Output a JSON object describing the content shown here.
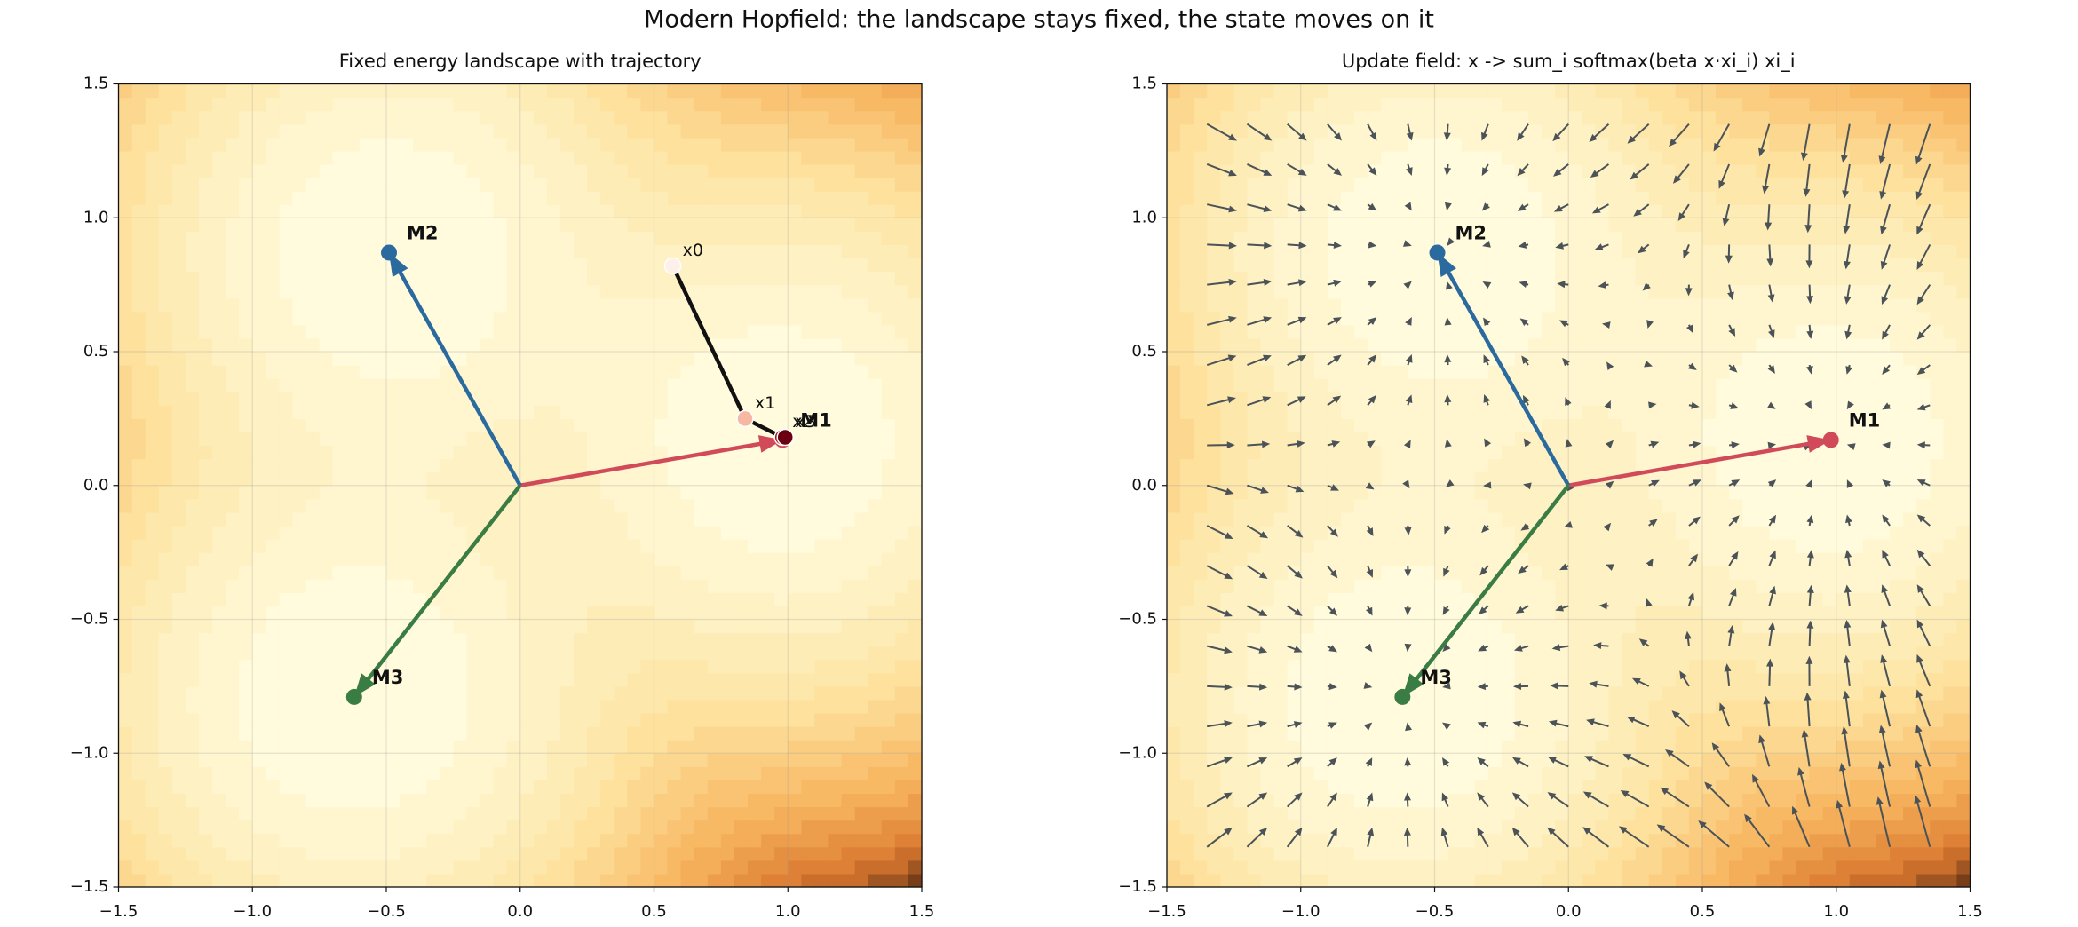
{
  "suptitle": "Modern Hopfield: the landscape stays fixed, the state moves on it",
  "chart_data": [
    {
      "type": "trajectory",
      "title": "Fixed energy landscape with trajectory",
      "xlim": [
        -1.5,
        1.5
      ],
      "ylim": [
        -1.5,
        1.5
      ],
      "xticks": [
        {
          "value": -1.5,
          "label": "−1.5"
        },
        {
          "value": -1.0,
          "label": "−1.0"
        },
        {
          "value": -0.5,
          "label": "−0.5"
        },
        {
          "value": 0,
          "label": "0.0"
        },
        0.5,
        {
          "value": 1.0,
          "label": "1.0"
        },
        1.5
      ],
      "yticks": [
        {
          "value": -1.5,
          "label": "−1.5"
        },
        {
          "value": -1.0,
          "label": "−1.0"
        },
        {
          "value": -0.5,
          "label": "−0.5"
        },
        {
          "value": 0,
          "label": "0.0"
        },
        0.5,
        {
          "value": 1.0,
          "label": "1.0"
        },
        1.5
      ],
      "grid": true,
      "series": [
        {
          "name": "M1",
          "color": "#d04a5a",
          "x": [
            0.98
          ],
          "y": [
            0.17
          ]
        },
        {
          "name": "M2",
          "color": "#2b6a9e",
          "x": [
            -0.49
          ],
          "y": [
            0.87
          ]
        },
        {
          "name": "M3",
          "color": "#3a7d44",
          "x": [
            -0.62
          ],
          "y": [
            -0.79
          ]
        }
      ],
      "trajectory": {
        "labels": [
          "x0",
          "x1",
          "x2",
          "x3"
        ],
        "x": [
          0.57,
          0.84,
          0.98,
          0.99
        ],
        "y": [
          0.82,
          0.25,
          0.18,
          0.18
        ],
        "colors": [
          "#fdf0ea",
          "#f6b8a2",
          "#a3101f",
          "#6b0010"
        ],
        "color": "#111111"
      }
    },
    {
      "type": "quiver",
      "title": "Update field: x -> sum_i softmax(beta x·xi_i) xi_i",
      "xlim": [
        -1.5,
        1.5
      ],
      "ylim": [
        -1.5,
        1.5
      ],
      "xticks": [
        {
          "value": -1.5,
          "label": "−1.5"
        },
        {
          "value": -1.0,
          "label": "−1.0"
        },
        {
          "value": -0.5,
          "label": "−0.5"
        },
        {
          "value": 0,
          "label": "0.0"
        },
        0.5,
        {
          "value": 1.0,
          "label": "1.0"
        },
        1.5
      ],
      "yticks": [
        {
          "value": -1.5,
          "label": "−1.5"
        },
        {
          "value": -1.0,
          "label": "−1.0"
        },
        {
          "value": -0.5,
          "label": "−0.5"
        },
        {
          "value": 0,
          "label": "0.0"
        },
        0.5,
        {
          "value": 1.0,
          "label": "1.0"
        },
        1.5
      ],
      "grid": true,
      "series": [
        {
          "name": "M1",
          "color": "#d04a5a",
          "x": [
            0.98
          ],
          "y": [
            0.17
          ]
        },
        {
          "name": "M2",
          "color": "#2b6a9e",
          "x": [
            -0.49
          ],
          "y": [
            0.87
          ]
        },
        {
          "name": "M3",
          "color": "#3a7d44",
          "x": [
            -0.62
          ],
          "y": [
            -0.79
          ]
        }
      ],
      "quiver": {
        "color": "#4b5358",
        "x": [
          -1.35,
          -1.2,
          -1.05,
          -0.9,
          -0.75,
          -0.6,
          -0.45,
          -0.3,
          -0.15,
          0,
          0.15,
          0.3,
          0.45,
          0.6,
          0.75,
          0.9,
          1.05,
          1.2,
          1.35
        ],
        "y": [
          -1.35,
          -1.2,
          -1.05,
          -0.9,
          -0.75,
          -0.6,
          -0.45,
          -0.3,
          -0.15,
          0,
          0.15,
          0.3,
          0.45,
          0.6,
          0.75,
          0.9,
          1.05,
          1.2,
          1.35
        ]
      }
    }
  ]
}
